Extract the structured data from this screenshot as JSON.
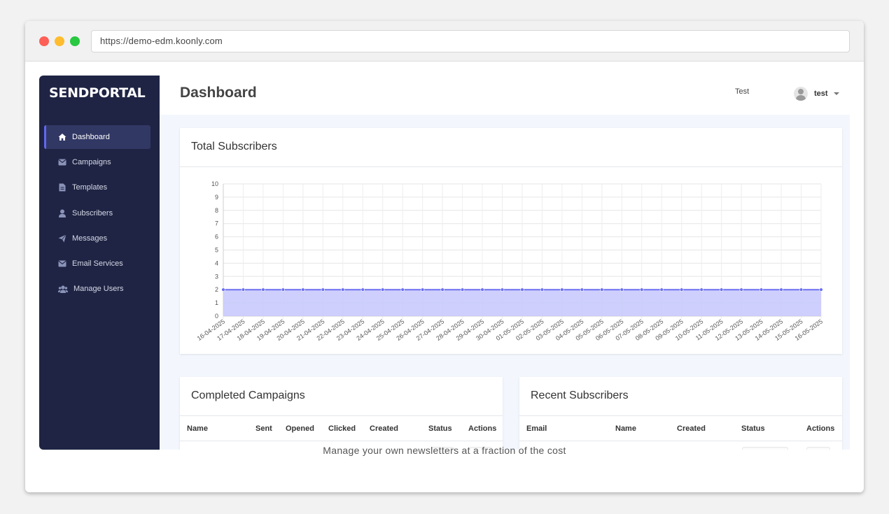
{
  "browser": {
    "url": "https://demo-edm.koonly.com"
  },
  "sidebar": {
    "logo": "SENDPORTAL",
    "items": [
      {
        "label": "Dashboard",
        "icon": "home-icon",
        "active": true
      },
      {
        "label": "Campaigns",
        "icon": "envelope-icon",
        "active": false
      },
      {
        "label": "Templates",
        "icon": "file-icon",
        "active": false
      },
      {
        "label": "Subscribers",
        "icon": "user-icon",
        "active": false
      },
      {
        "label": "Messages",
        "icon": "paper-plane-icon",
        "active": false
      },
      {
        "label": "Email Services",
        "icon": "envelope-icon",
        "active": false
      },
      {
        "label": "Manage Users",
        "icon": "users-icon",
        "active": false
      }
    ]
  },
  "header": {
    "title": "Dashboard",
    "workspace": "Test",
    "user": "test"
  },
  "cards": {
    "total_subscribers": {
      "title": "Total Subscribers"
    },
    "completed_campaigns": {
      "title": "Completed Campaigns",
      "columns": [
        "Name",
        "Sent",
        "Opened",
        "Clicked",
        "Created",
        "Status",
        "Actions"
      ]
    },
    "recent_subscribers": {
      "title": "Recent Subscribers",
      "columns": [
        "Email",
        "Name",
        "Created",
        "Status",
        "Actions"
      ]
    }
  },
  "chart_data": {
    "type": "area",
    "title": "",
    "xlabel": "",
    "ylabel": "",
    "ylim": [
      0,
      10
    ],
    "yticks": [
      0,
      1,
      2,
      3,
      4,
      5,
      6,
      7,
      8,
      9,
      10
    ],
    "grid": true,
    "x": [
      "16-04-2025",
      "17-04-2025",
      "18-04-2025",
      "19-04-2025",
      "20-04-2025",
      "21-04-2025",
      "22-04-2025",
      "23-04-2025",
      "24-04-2025",
      "25-04-2025",
      "26-04-2025",
      "27-04-2025",
      "28-04-2025",
      "29-04-2025",
      "30-04-2025",
      "01-05-2025",
      "02-05-2025",
      "03-05-2025",
      "04-05-2025",
      "05-05-2025",
      "06-05-2025",
      "07-05-2025",
      "08-05-2025",
      "09-05-2025",
      "10-05-2025",
      "11-05-2025",
      "12-05-2025",
      "13-05-2025",
      "14-05-2025",
      "15-05-2025",
      "16-05-2025"
    ],
    "series": [
      {
        "values": [
          2,
          2,
          2,
          2,
          2,
          2,
          2,
          2,
          2,
          2,
          2,
          2,
          2,
          2,
          2,
          2,
          2,
          2,
          2,
          2,
          2,
          2,
          2,
          2,
          2,
          2,
          2,
          2,
          2,
          2,
          2
        ]
      }
    ],
    "colors": {
      "line": "#6b6ff0",
      "fill": "#c5c7fb"
    }
  },
  "footer": {
    "tagline": "Manage your own newsletters at a fraction of the cost"
  }
}
